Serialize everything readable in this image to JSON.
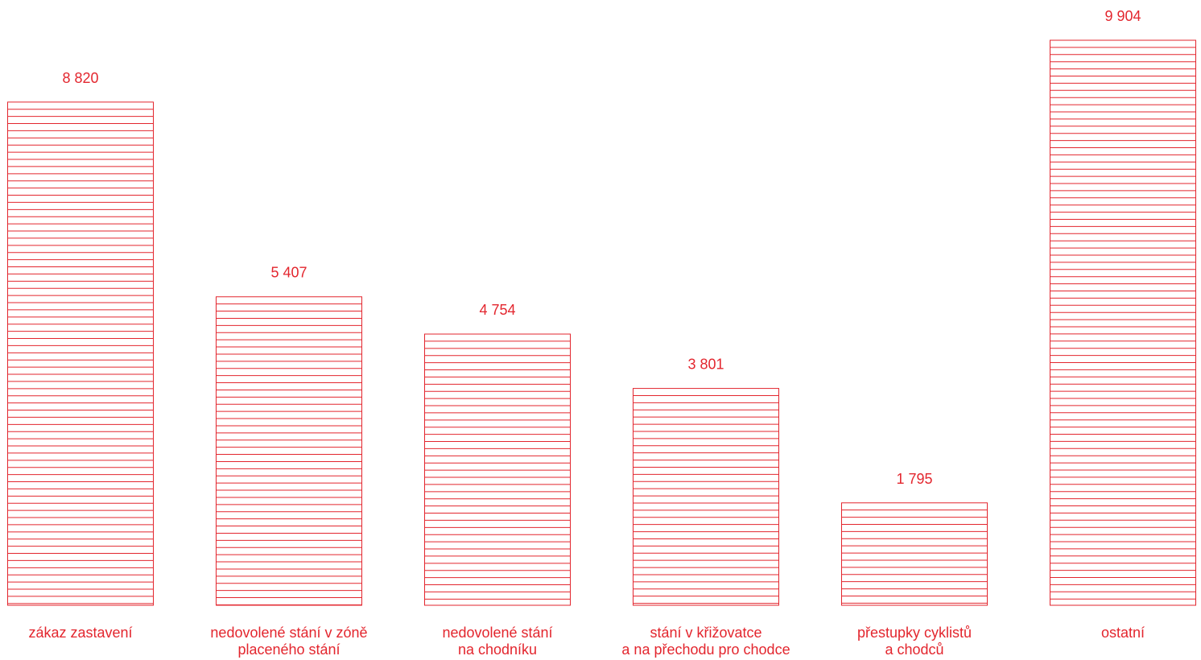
{
  "chart_data": {
    "type": "bar",
    "categories": [
      [
        "zákaz zastavení"
      ],
      [
        "nedovolené stání v zóně",
        "placeného stání"
      ],
      [
        "nedovolené stání",
        "na chodníku"
      ],
      [
        "stání v křižovatce",
        "a na přechodu pro chodce"
      ],
      [
        "přestupky cyklistů",
        "a chodců"
      ],
      [
        "ostatní"
      ]
    ],
    "values": [
      8820,
      5407,
      4754,
      3801,
      1795,
      9904
    ],
    "value_labels": [
      "8 820",
      "5 407",
      "4 754",
      "3 801",
      "1 795",
      "9 904"
    ],
    "title": "",
    "xlabel": "",
    "ylabel": "",
    "ylim": [
      0,
      9904
    ],
    "grid": false,
    "legend": "none",
    "bar_style": "hatched-horizontal-lines",
    "accent_color": "#e3262e"
  }
}
